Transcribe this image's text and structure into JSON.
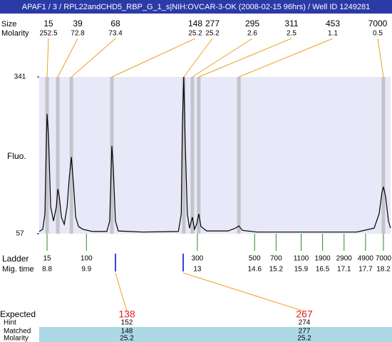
{
  "header": {
    "title": "APAF1 / 3 / RPL22andCHD5_RBP_G_1_s|NIH:OVCAR-3-OK (2008-02-15 96hrs) / Well ID 1249281"
  },
  "chart_data": {
    "type": "line",
    "ylabel": "Fluo.",
    "xlim": [
      8.58,
      18.4
    ],
    "ylim": [
      57,
      341
    ],
    "yticks": [
      57,
      341
    ],
    "series": [
      {
        "color": "#000000",
        "x": [
          8.58,
          8.68,
          8.74,
          8.78,
          8.8,
          8.84,
          8.9,
          8.98,
          9.06,
          9.1,
          9.14,
          9.2,
          9.28,
          9.36,
          9.42,
          9.48,
          9.54,
          9.6,
          9.68,
          9.8,
          10.07,
          10.47,
          10.55,
          10.61,
          10.65,
          10.71,
          10.79,
          11.47,
          12.47,
          12.55,
          12.58,
          12.62,
          12.66,
          12.72,
          12.78,
          12.86,
          12.92,
          12.98,
          13.04,
          13.1,
          13.26,
          13.86,
          14.06,
          14.16,
          14.26,
          14.66,
          17.45,
          17.94,
          18.08,
          18.16,
          18.2,
          18.26,
          18.34,
          18.4
        ],
        "values": [
          61,
          65,
          93,
          222,
          274,
          235,
          106,
          80,
          106,
          138,
          125,
          87,
          74,
          106,
          158,
          196,
          145,
          87,
          70,
          65,
          61,
          61,
          80,
          216,
          177,
          80,
          62,
          60,
          61,
          93,
          248,
          341,
          222,
          93,
          67,
          87,
          65,
          74,
          93,
          70,
          62,
          62,
          67,
          71,
          63,
          60,
          60,
          67,
          93,
          132,
          142,
          125,
          80,
          67
        ]
      }
    ]
  },
  "peaks": {
    "size_label": "Size",
    "molarity_label": "Molarity",
    "sizes": [
      15,
      39,
      68,
      148,
      277,
      295,
      311,
      453,
      7000
    ],
    "molarities": [
      252.5,
      72.8,
      73.4,
      25.2,
      25.2,
      2.6,
      2.5,
      1.1,
      0.5
    ],
    "times": [
      8.8,
      9.1,
      9.48,
      10.61,
      12.62,
      12.86,
      13.04,
      14.16,
      18.2
    ]
  },
  "ladder": {
    "label": "Ladder",
    "time_label": "Mig. time",
    "sizes": [
      15,
      100,
      300,
      500,
      700,
      1100,
      1900,
      2900,
      4900,
      7000
    ],
    "times": [
      8.8,
      9.9,
      13,
      14.6,
      15.2,
      15.9,
      16.5,
      17.1,
      17.7,
      18.2
    ]
  },
  "expected": {
    "expected_label": "Expected",
    "hint_label": "Hint",
    "matched_label": "Matched",
    "molarity_label": "Molarity",
    "expected": [
      138,
      267
    ],
    "hint": [
      152,
      274
    ],
    "matched": [
      148,
      277
    ],
    "molarity": [
      25.2,
      25.2
    ]
  }
}
